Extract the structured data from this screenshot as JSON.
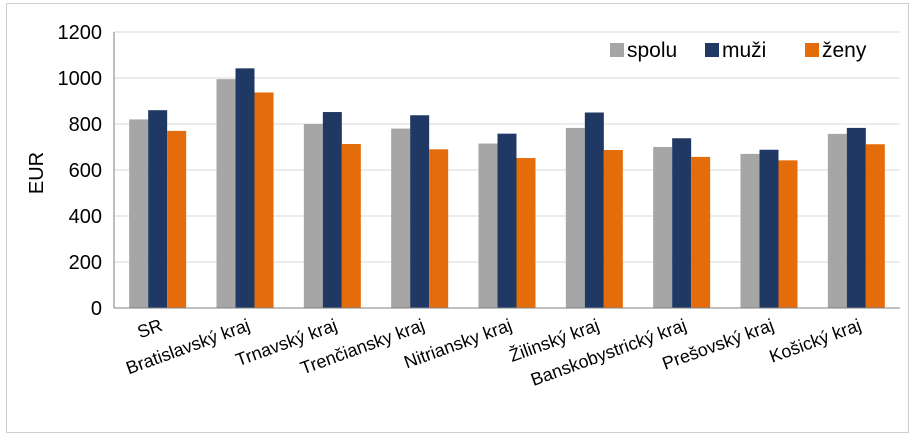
{
  "chart_data": {
    "type": "bar",
    "categories": [
      "SR",
      "Bratislavský kraj",
      "Trnavský kraj",
      "Trenčiansky kraj",
      "Nitriansky kraj",
      "Žilinský kraj",
      "Banskobystrický kraj",
      "Prešovský kraj",
      "Košický kraj"
    ],
    "series": [
      {
        "name": "spolu",
        "color": "#a6a6a6",
        "values": [
          820,
          995,
          800,
          780,
          715,
          783,
          700,
          670,
          757
        ]
      },
      {
        "name": "muži",
        "color": "#1f3864",
        "values": [
          860,
          1042,
          852,
          838,
          758,
          850,
          738,
          688,
          783
        ]
      },
      {
        "name": "ženy",
        "color": "#e46c0a",
        "values": [
          770,
          937,
          713,
          690,
          652,
          687,
          657,
          642,
          712
        ]
      }
    ],
    "ylabel": "EUR",
    "ylim": [
      0,
      1200
    ],
    "yticks": [
      "0",
      "200",
      "400",
      "600",
      "800",
      "1000",
      "1200"
    ],
    "grid": true,
    "legend_position": "top-right"
  },
  "colors": {
    "grid": "#d9d9d9",
    "axis": "#808080"
  }
}
